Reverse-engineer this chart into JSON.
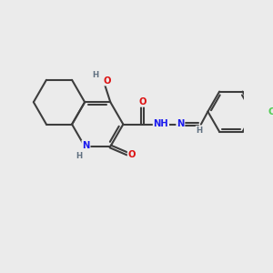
{
  "bg_color": "#ebebeb",
  "bond_color": "#3d3d3d",
  "bond_width": 1.5,
  "N_color": "#1a1aee",
  "O_color": "#dd1111",
  "Cl_color": "#55cc55",
  "H_color": "#607080",
  "font_size": 7.2,
  "fig_w": 3.0,
  "fig_h": 3.0,
  "dpi": 100,
  "xlim": [
    0,
    10
  ],
  "ylim": [
    0,
    10
  ],
  "ring_r": 1.05,
  "benz_r": 0.95,
  "double_sep": 0.11
}
